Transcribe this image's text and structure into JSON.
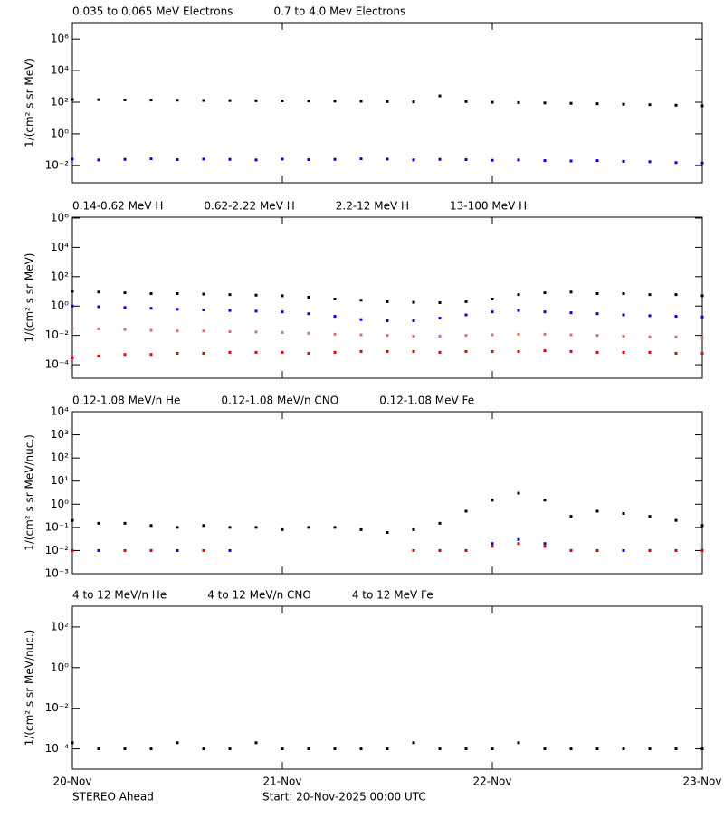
{
  "chart_data": [
    {
      "type": "scatter",
      "yscale": "log",
      "y_label": "1/(cm² s sr MeV)",
      "x": [
        "2025-11-20T00:00",
        "2025-11-20T03:00",
        "2025-11-20T06:00",
        "2025-11-20T09:00",
        "2025-11-20T12:00",
        "2025-11-20T15:00",
        "2025-11-20T18:00",
        "2025-11-20T21:00",
        "2025-11-21T00:00",
        "2025-11-21T03:00",
        "2025-11-21T06:00",
        "2025-11-21T09:00",
        "2025-11-21T12:00",
        "2025-11-21T15:00",
        "2025-11-21T18:00",
        "2025-11-21T21:00",
        "2025-11-22T00:00",
        "2025-11-22T03:00",
        "2025-11-22T06:00",
        "2025-11-22T09:00",
        "2025-11-22T12:00",
        "2025-11-22T15:00",
        "2025-11-22T18:00",
        "2025-11-22T21:00",
        "2025-11-23T00:00"
      ],
      "xlim": [
        "2025-11-20T00:00",
        "2025-11-23T00:00"
      ],
      "ylim": [
        0.0008,
        11000000
      ],
      "yticks": [
        {
          "value": 0.01,
          "label": "10⁻²"
        },
        {
          "value": 1,
          "label": "10⁰"
        },
        {
          "value": 100,
          "label": "10²"
        },
        {
          "value": 10000,
          "label": "10⁴"
        },
        {
          "value": 1000000,
          "label": "10⁶"
        }
      ],
      "series": [
        {
          "name": "0.035 to 0.065 MeV Electrons",
          "color": "#000000",
          "values": [
            150,
            145,
            140,
            138,
            135,
            130,
            128,
            125,
            122,
            120,
            118,
            115,
            110,
            105,
            250,
            110,
            100,
            95,
            90,
            85,
            80,
            75,
            70,
            65,
            60
          ]
        },
        {
          "name": "0.7 to 4.0 Mev Electrons",
          "color": "#0000e0",
          "values": [
            0.025,
            0.022,
            0.024,
            0.026,
            0.023,
            0.025,
            0.024,
            0.022,
            0.025,
            0.023,
            0.024,
            0.026,
            0.025,
            0.022,
            0.024,
            0.023,
            0.021,
            0.022,
            0.02,
            0.019,
            0.02,
            0.018,
            0.017,
            0.015,
            0.014
          ]
        }
      ]
    },
    {
      "type": "scatter",
      "yscale": "log",
      "y_label": "1/(cm² s sr MeV)",
      "x": [
        "2025-11-20T00:00",
        "2025-11-20T03:00",
        "2025-11-20T06:00",
        "2025-11-20T09:00",
        "2025-11-20T12:00",
        "2025-11-20T15:00",
        "2025-11-20T18:00",
        "2025-11-20T21:00",
        "2025-11-21T00:00",
        "2025-11-21T03:00",
        "2025-11-21T06:00",
        "2025-11-21T09:00",
        "2025-11-21T12:00",
        "2025-11-21T15:00",
        "2025-11-21T18:00",
        "2025-11-21T21:00",
        "2025-11-22T00:00",
        "2025-11-22T03:00",
        "2025-11-22T06:00",
        "2025-11-22T09:00",
        "2025-11-22T12:00",
        "2025-11-22T15:00",
        "2025-11-22T18:00",
        "2025-11-22T21:00",
        "2025-11-23T00:00"
      ],
      "xlim": [
        "2025-11-20T00:00",
        "2025-11-23T00:00"
      ],
      "ylim": [
        1.2e-05,
        1150000
      ],
      "yticks": [
        {
          "value": 0.0001,
          "label": "10⁻⁴"
        },
        {
          "value": 0.01,
          "label": "10⁻²"
        },
        {
          "value": 1,
          "label": "10⁰"
        },
        {
          "value": 100,
          "label": "10²"
        },
        {
          "value": 10000,
          "label": "10⁴"
        },
        {
          "value": 1000000,
          "label": "10⁶"
        }
      ],
      "series": [
        {
          "name": "0.14-0.62 MeV H",
          "color": "#000000",
          "values": [
            10,
            9,
            8,
            7,
            7,
            6.5,
            6,
            5.5,
            5,
            4,
            3,
            2.5,
            2,
            1.8,
            1.7,
            2,
            3,
            6,
            8,
            9,
            7,
            7,
            6,
            6,
            5
          ]
        },
        {
          "name": "0.62-2.22 MeV H",
          "color": "#0000e0",
          "values": [
            1,
            0.9,
            0.8,
            0.7,
            0.6,
            0.55,
            0.5,
            0.45,
            0.4,
            0.3,
            0.2,
            0.12,
            0.1,
            0.1,
            0.15,
            0.25,
            0.4,
            0.5,
            0.4,
            0.35,
            0.3,
            0.25,
            0.22,
            0.2,
            0.18
          ]
        },
        {
          "name": "2.2-12 MeV H",
          "color": "#c87a66",
          "values": [
            0.03,
            0.028,
            0.025,
            0.022,
            0.02,
            0.02,
            0.018,
            0.017,
            0.016,
            0.014,
            0.012,
            0.011,
            0.01,
            0.009,
            0.009,
            0.01,
            0.011,
            0.012,
            0.012,
            0.011,
            0.01,
            0.009,
            0.008,
            0.008,
            0.007
          ]
        },
        {
          "name": "13-100 MeV H",
          "color": "#e00000",
          "values": [
            0.0003,
            0.0004,
            0.0005,
            0.0005,
            0.0006,
            0.0006,
            0.0007,
            0.0007,
            0.0007,
            0.0006,
            0.0007,
            0.0008,
            0.0008,
            0.0008,
            0.0007,
            0.0008,
            0.0008,
            0.0008,
            0.0009,
            0.0008,
            0.0007,
            0.0007,
            0.0007,
            0.0006,
            0.0006
          ]
        }
      ]
    },
    {
      "type": "scatter",
      "yscale": "log",
      "y_label": "1/(cm² s sr MeV/nuc.)",
      "x": [
        "2025-11-20T00:00",
        "2025-11-20T03:00",
        "2025-11-20T06:00",
        "2025-11-20T09:00",
        "2025-11-20T12:00",
        "2025-11-20T15:00",
        "2025-11-20T18:00",
        "2025-11-20T21:00",
        "2025-11-21T00:00",
        "2025-11-21T03:00",
        "2025-11-21T06:00",
        "2025-11-21T09:00",
        "2025-11-21T12:00",
        "2025-11-21T15:00",
        "2025-11-21T18:00",
        "2025-11-21T21:00",
        "2025-11-22T00:00",
        "2025-11-22T03:00",
        "2025-11-22T06:00",
        "2025-11-22T09:00",
        "2025-11-22T12:00",
        "2025-11-22T15:00",
        "2025-11-22T18:00",
        "2025-11-22T21:00",
        "2025-11-23T00:00"
      ],
      "xlim": [
        "2025-11-20T00:00",
        "2025-11-23T00:00"
      ],
      "ylim": [
        0.001,
        10000
      ],
      "yticks": [
        {
          "value": 0.001,
          "label": "10⁻³"
        },
        {
          "value": 0.01,
          "label": "10⁻²"
        },
        {
          "value": 0.1,
          "label": "10⁻¹"
        },
        {
          "value": 1,
          "label": "10⁰"
        },
        {
          "value": 10,
          "label": "10¹"
        },
        {
          "value": 100,
          "label": "10²"
        },
        {
          "value": 1000,
          "label": "10³"
        },
        {
          "value": 10000,
          "label": "10⁴"
        }
      ],
      "series": [
        {
          "name": "0.12-1.08 MeV/n He",
          "color": "#000000",
          "values": [
            0.2,
            0.15,
            0.15,
            0.12,
            0.1,
            0.12,
            0.1,
            0.1,
            0.08,
            0.1,
            0.1,
            0.08,
            0.06,
            0.08,
            0.15,
            0.5,
            1.5,
            3,
            1.5,
            0.3,
            0.5,
            0.4,
            0.3,
            0.2,
            0.12
          ]
        },
        {
          "name": "0.12-1.08 MeV/n CNO",
          "color": "#0000e0",
          "values": [
            0.01,
            0.01,
            null,
            0.01,
            0.01,
            null,
            0.01,
            null,
            null,
            null,
            null,
            null,
            null,
            null,
            0.01,
            0.01,
            0.02,
            0.03,
            0.02,
            0.01,
            0.01,
            0.01,
            0.01,
            0.01,
            0.01
          ]
        },
        {
          "name": "0.12-1.08 MeV Fe",
          "color": "#e00000",
          "values": [
            0.01,
            null,
            0.01,
            0.01,
            null,
            0.01,
            null,
            null,
            null,
            null,
            null,
            null,
            null,
            0.01,
            0.01,
            0.01,
            0.015,
            0.02,
            0.015,
            0.01,
            0.01,
            null,
            0.01,
            0.01,
            0.01
          ]
        }
      ]
    },
    {
      "type": "scatter",
      "yscale": "log",
      "y_label": "1/(cm² s sr MeV/nuc.)",
      "x": [
        "2025-11-20T00:00",
        "2025-11-20T03:00",
        "2025-11-20T06:00",
        "2025-11-20T09:00",
        "2025-11-20T12:00",
        "2025-11-20T15:00",
        "2025-11-20T18:00",
        "2025-11-20T21:00",
        "2025-11-21T00:00",
        "2025-11-21T03:00",
        "2025-11-21T06:00",
        "2025-11-21T09:00",
        "2025-11-21T12:00",
        "2025-11-21T15:00",
        "2025-11-21T18:00",
        "2025-11-21T21:00",
        "2025-11-22T00:00",
        "2025-11-22T03:00",
        "2025-11-22T06:00",
        "2025-11-22T09:00",
        "2025-11-22T12:00",
        "2025-11-22T15:00",
        "2025-11-22T18:00",
        "2025-11-22T21:00",
        "2025-11-23T00:00"
      ],
      "xlim": [
        "2025-11-20T00:00",
        "2025-11-23T00:00"
      ],
      "xticks": [
        {
          "value": "2025-11-20T00:00",
          "label": "20-Nov"
        },
        {
          "value": "2025-11-21T00:00",
          "label": "21-Nov"
        },
        {
          "value": "2025-11-22T00:00",
          "label": "22-Nov"
        },
        {
          "value": "2025-11-23T00:00",
          "label": "23-Nov"
        }
      ],
      "ylim": [
        1e-05,
        1050
      ],
      "yticks": [
        {
          "value": 0.0001,
          "label": "10⁻⁴"
        },
        {
          "value": 0.01,
          "label": "10⁻²"
        },
        {
          "value": 1,
          "label": "10⁰"
        },
        {
          "value": 100,
          "label": "10²"
        }
      ],
      "series": [
        {
          "name": "4 to 12 MeV/n He",
          "color": "#000000",
          "values": [
            0.0002,
            0.0001,
            0.0001,
            0.0001,
            0.0002,
            0.0001,
            0.0001,
            0.0002,
            0.0001,
            0.0001,
            0.0001,
            0.0001,
            0.0001,
            0.0002,
            0.0001,
            0.0001,
            0.0001,
            0.0002,
            0.0001,
            0.0001,
            0.0001,
            0.0001,
            0.0001,
            0.0001,
            0.0001
          ]
        },
        {
          "name": "4 to 12 MeV/n CNO",
          "color": "#0000e0",
          "values": [
            null,
            null,
            null,
            null,
            null,
            null,
            null,
            null,
            null,
            null,
            null,
            null,
            null,
            null,
            null,
            null,
            null,
            null,
            null,
            null,
            null,
            null,
            null,
            null,
            null
          ]
        },
        {
          "name": "4 to 12 MeV Fe",
          "color": "#e00000",
          "values": [
            null,
            null,
            null,
            null,
            null,
            null,
            null,
            null,
            null,
            null,
            null,
            null,
            null,
            null,
            null,
            null,
            null,
            null,
            null,
            null,
            null,
            null,
            null,
            null,
            null
          ]
        }
      ],
      "annotations": [
        "STEREO Ahead",
        "Start: 20-Nov-2025 00:00 UTC"
      ]
    }
  ]
}
